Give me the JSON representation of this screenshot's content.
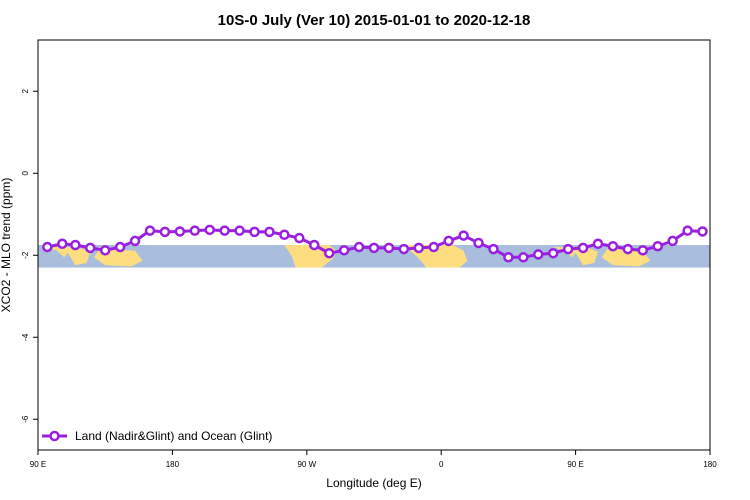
{
  "chart_data": {
    "type": "line",
    "title": "10S-0 July (Ver 10)   2015-01-01 to 2020-12-18",
    "xlabel": "Longitude (deg E)",
    "ylabel": "XCO2 - MLO trend (ppm)",
    "xlim": [
      90,
      450
    ],
    "ylim": [
      -6.75,
      3.25
    ],
    "x_ticks": [
      {
        "value": 90,
        "label": "90 E"
      },
      {
        "value": 162,
        "label": "180"
      },
      {
        "value": 234,
        "label": "90 W"
      },
      {
        "value": 306,
        "label": "0"
      },
      {
        "value": 378,
        "label": "90 E"
      },
      {
        "value": 450,
        "label": "180"
      }
    ],
    "y_ticks": [
      {
        "value": 2,
        "label": "2"
      },
      {
        "value": 0,
        "label": "0"
      },
      {
        "value": -2,
        "label": "-2"
      },
      {
        "value": -4,
        "label": "-4"
      },
      {
        "value": -6,
        "label": "-6"
      }
    ],
    "map_band": {
      "latitude_range": "10S-0",
      "y_range": [
        -2.3,
        -1.75
      ],
      "ocean_color": "#a8bedc",
      "land_color": "#fedc80"
    },
    "series": [
      {
        "name": "Land (Nadir&Glint) and Ocean (Glint)",
        "color": "#9a1fe0",
        "x": [
          95,
          103,
          110,
          118,
          126,
          134,
          142,
          150,
          158,
          166,
          174,
          182,
          190,
          198,
          206,
          214,
          222,
          230,
          238,
          246,
          254,
          262,
          270,
          278,
          286,
          294,
          302,
          310,
          318,
          326,
          334,
          342,
          350,
          358,
          366,
          374,
          382,
          390,
          398,
          406,
          414,
          422,
          430,
          438,
          446
        ],
        "y": [
          -1.8,
          -1.72,
          -1.75,
          -1.82,
          -1.88,
          -1.8,
          -1.65,
          -1.4,
          -1.43,
          -1.42,
          -1.4,
          -1.38,
          -1.4,
          -1.4,
          -1.43,
          -1.43,
          -1.5,
          -1.58,
          -1.75,
          -1.95,
          -1.88,
          -1.8,
          -1.82,
          -1.82,
          -1.85,
          -1.82,
          -1.8,
          -1.65,
          -1.52,
          -1.7,
          -1.85,
          -2.05,
          -2.05,
          -1.98,
          -1.95,
          -1.85,
          -1.82,
          -1.72,
          -1.78,
          -1.85,
          -1.88,
          -1.78,
          -1.65,
          -1.4,
          -1.42
        ]
      }
    ],
    "legend": {
      "position": "bottom-left"
    }
  }
}
